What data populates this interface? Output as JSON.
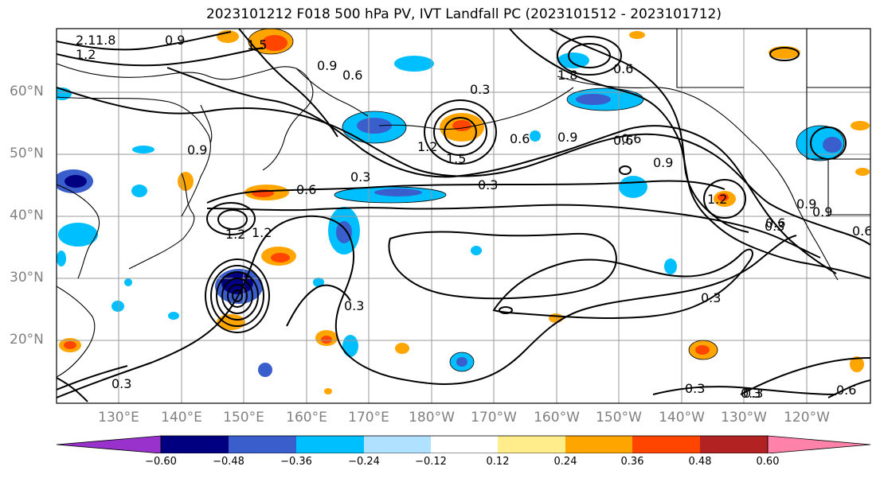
{
  "title": "2023101212 F018 500 hPa PV, IVT Landfall PC (2023101512 - 2023101712)",
  "lat_labels": [
    "60°N",
    "50°N",
    "40°N",
    "30°N",
    "20°N"
  ],
  "lon_labels": [
    "130°E",
    "140°E",
    "150°E",
    "160°E",
    "170°E",
    "180°W",
    "170°W",
    "160°W",
    "150°W",
    "140°W",
    "130°W",
    "120°W"
  ],
  "colorbar": {
    "colors": [
      "#9932CC",
      "#000080",
      "#3A5FCD",
      "#00BFFF",
      "#B0E2FF",
      "#FFFFFF",
      "#FFEC8B",
      "#FFA500",
      "#FF4500",
      "#B22222",
      "#FF82AB"
    ],
    "tick_labels": [
      "−0.60",
      "−0.48",
      "−0.36",
      "−0.24",
      "−0.12",
      "0.12",
      "0.24",
      "0.36",
      "0.48",
      "0.60"
    ]
  },
  "contour_labels": [
    "0.9",
    "1.2",
    "1.5",
    "1.8",
    "2.1",
    "0.9",
    "0.6",
    "0.3",
    "1.8",
    "0.6",
    "0.9",
    "1.2",
    "1.5",
    "0.6",
    "0.3",
    "0.6",
    "0.9",
    "1.2",
    "0.3",
    "0.6",
    "0.9",
    "1.2",
    "0.3",
    "0.3",
    "0.3",
    "0.3",
    "0.3",
    "0.6",
    "0.9",
    "0.6",
    "1.2",
    "0.6",
    "0.9",
    "0.6",
    "0.3",
    "0.3"
  ]
}
